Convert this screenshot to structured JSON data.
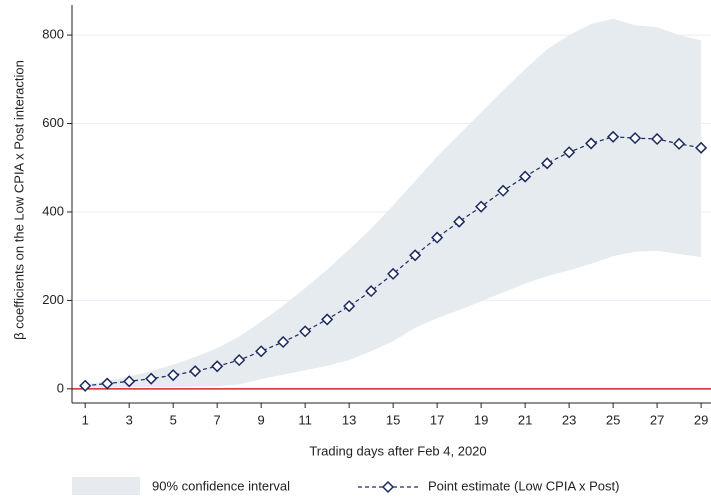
{
  "chart_data": {
    "type": "line_band",
    "x_label": "Trading days after Feb 4, 2020",
    "y_label": "β coefficients on the Low CPIA x Post interaction",
    "x": [
      1,
      2,
      3,
      4,
      5,
      6,
      7,
      8,
      9,
      10,
      11,
      12,
      13,
      14,
      15,
      16,
      17,
      18,
      19,
      20,
      21,
      22,
      23,
      24,
      25,
      26,
      27,
      28,
      29
    ],
    "series": [
      {
        "name": "90% confidence interval",
        "color": "#e6ebf0",
        "lower": [
          2,
          3,
          4,
          4,
          4,
          5,
          6,
          10,
          22,
          32,
          42,
          52,
          65,
          85,
          108,
          138,
          160,
          178,
          198,
          218,
          238,
          255,
          268,
          283,
          300,
          310,
          312,
          305,
          298
        ],
        "upper": [
          10,
          18,
          28,
          40,
          55,
          72,
          92,
          118,
          152,
          188,
          228,
          270,
          315,
          362,
          415,
          470,
          525,
          575,
          625,
          675,
          723,
          768,
          800,
          825,
          837,
          822,
          818,
          800,
          788
        ]
      },
      {
        "name": "Point estimate (Low CPIA x Post)",
        "color": "#1a2a5e",
        "values": [
          7,
          12,
          17,
          23,
          31,
          40,
          51,
          65,
          85,
          106,
          130,
          157,
          187,
          221,
          260,
          302,
          342,
          378,
          412,
          448,
          480,
          510,
          535,
          555,
          570,
          567,
          565,
          554,
          545
        ]
      }
    ],
    "reference_line": 0,
    "reference_color": "#d62728",
    "xlim": [
      0.4,
      29.45
    ],
    "ylim": [
      -32,
      868
    ],
    "xticks": [
      1,
      3,
      5,
      7,
      9,
      11,
      13,
      15,
      17,
      19,
      21,
      23,
      25,
      27,
      29
    ],
    "yticks": [
      0,
      200,
      400,
      600,
      800
    ],
    "grid": true
  }
}
